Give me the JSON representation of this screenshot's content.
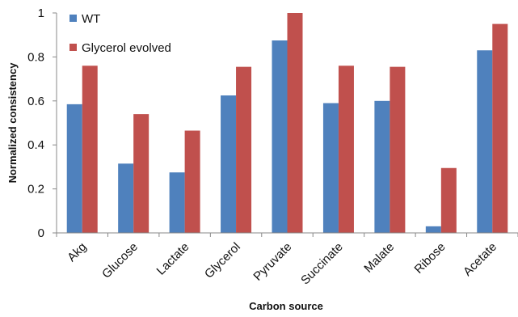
{
  "chart_data": {
    "type": "bar",
    "title": "",
    "xlabel": "Carbon source",
    "ylabel": "Normalized consistency",
    "ylim": [
      0,
      1
    ],
    "yticks": [
      0,
      0.2,
      0.4,
      0.6,
      0.8,
      1
    ],
    "ytick_labels": [
      "0",
      "0.2",
      "0.4",
      "0.6",
      "0.8",
      "1"
    ],
    "grid": false,
    "legend_position": "top-left",
    "categories": [
      "Akg",
      "Glucose",
      "Lactate",
      "Glycerol",
      "Pyruvate",
      "Succinate",
      "Malate",
      "Ribose",
      "Acetate"
    ],
    "series": [
      {
        "name": "WT",
        "color": "#4f81bd",
        "values": [
          0.585,
          0.315,
          0.275,
          0.625,
          0.875,
          0.59,
          0.6,
          0.03,
          0.83
        ]
      },
      {
        "name": "Glycerol evolved",
        "color": "#c0504d",
        "values": [
          0.76,
          0.54,
          0.465,
          0.755,
          1.0,
          0.76,
          0.755,
          0.295,
          0.95
        ]
      }
    ]
  }
}
